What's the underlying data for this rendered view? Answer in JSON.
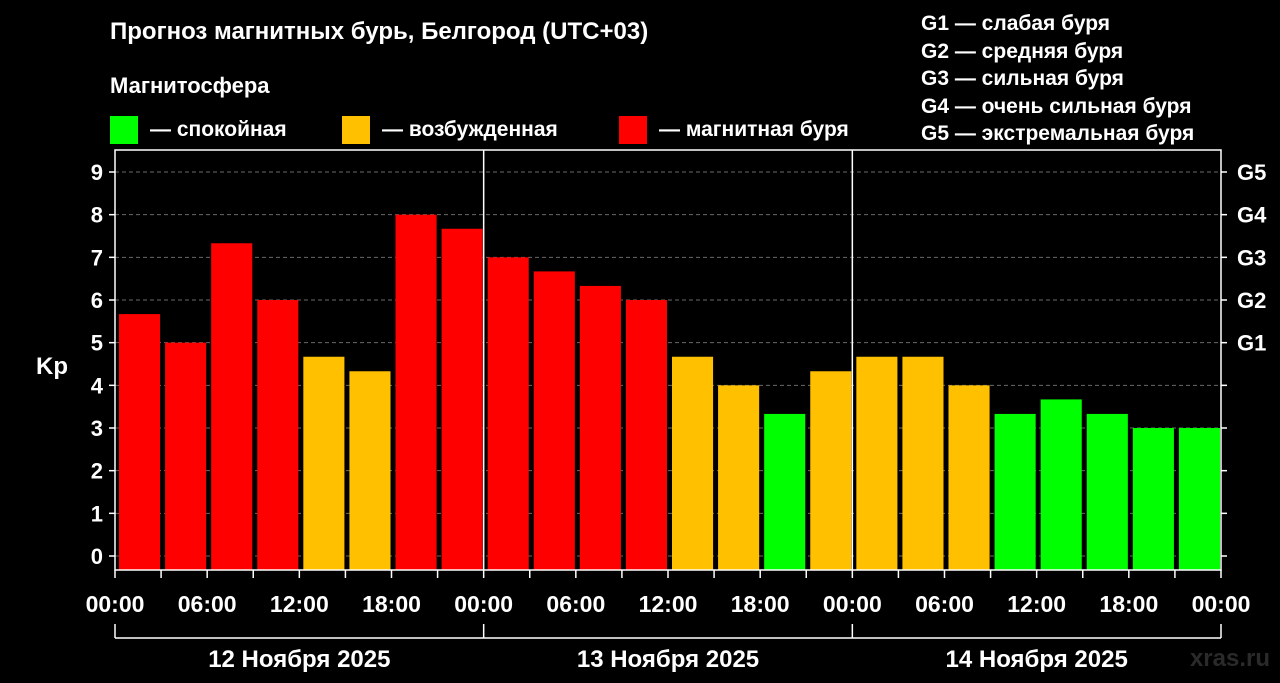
{
  "title": "Прогноз магнитных бурь, Белгород (UTC+03)",
  "legend": {
    "title": "Магнитосфера",
    "items": [
      {
        "label": "— спокойная",
        "color": "#00ff00"
      },
      {
        "label": "— возбужденная",
        "color": "#ffc000"
      },
      {
        "label": "— магнитная буря",
        "color": "#ff0000"
      }
    ]
  },
  "g_scale": [
    "G1 — слабая буря",
    "G2 — средняя буря",
    "G3 — сильная буря",
    "G4 — очень сильная буря",
    "G5 — экстремальная буря"
  ],
  "watermark": "xras.ru",
  "chart_data": {
    "type": "bar",
    "ylabel": "Kp",
    "ylim": [
      0,
      9
    ],
    "yticks": [
      "0",
      "1",
      "2",
      "3",
      "4",
      "5",
      "6",
      "7",
      "8",
      "9"
    ],
    "right_ticks": [
      {
        "label": "G1",
        "value": 5
      },
      {
        "label": "G2",
        "value": 6
      },
      {
        "label": "G3",
        "value": 7
      },
      {
        "label": "G4",
        "value": 8
      },
      {
        "label": "G5",
        "value": 9
      }
    ],
    "xticks": [
      "00:00",
      "06:00",
      "12:00",
      "18:00",
      "00:00",
      "06:00",
      "12:00",
      "18:00",
      "00:00",
      "06:00",
      "12:00",
      "18:00",
      "00:00"
    ],
    "days": [
      "12 Ноября 2025",
      "13 Ноября 2025",
      "14 Ноября 2025"
    ],
    "grid": true,
    "colors": {
      "quiet": "#00ff00",
      "active": "#ffc000",
      "storm": "#ff0000"
    },
    "values": [
      5.67,
      5.0,
      7.33,
      6.0,
      4.67,
      4.33,
      8.0,
      7.67,
      7.0,
      6.67,
      6.33,
      6.0,
      4.67,
      4.0,
      3.33,
      4.33,
      4.67,
      4.67,
      4.0,
      3.33,
      3.67,
      3.33,
      3.0,
      3.0
    ],
    "levels": [
      "storm",
      "storm",
      "storm",
      "storm",
      "active",
      "active",
      "storm",
      "storm",
      "storm",
      "storm",
      "storm",
      "storm",
      "active",
      "active",
      "quiet",
      "active",
      "active",
      "active",
      "active",
      "quiet",
      "quiet",
      "quiet",
      "quiet",
      "quiet"
    ]
  }
}
